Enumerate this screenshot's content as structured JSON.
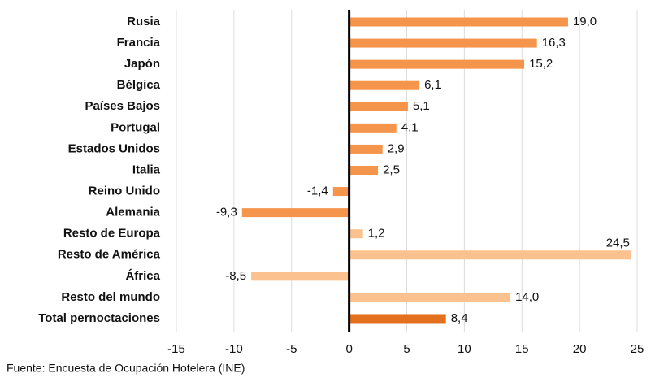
{
  "chart_data": {
    "type": "barh",
    "categories": [
      "Rusia",
      "Francia",
      "Japón",
      "Bélgica",
      "Países Bajos",
      "Portugal",
      "Estados Unidos",
      "Italia",
      "Reino Unido",
      "Alemania",
      "Resto de Europa",
      "Resto de América",
      "África",
      "Resto del mundo",
      "Total pernoctaciones"
    ],
    "values": [
      19.0,
      16.3,
      15.2,
      6.1,
      5.1,
      4.1,
      2.9,
      2.5,
      -1.4,
      -9.3,
      1.2,
      24.5,
      -8.5,
      14.0,
      8.4
    ],
    "value_labels": [
      "19,0",
      "16,3",
      "15,2",
      "6,1",
      "5,1",
      "4,1",
      "2,9",
      "2,5",
      "-1,4",
      "-9,3",
      "1,2",
      "24,5",
      "-8,5",
      "14,0",
      "8,4"
    ],
    "colors": [
      "#f5944b",
      "#f5944b",
      "#f5944b",
      "#f5944b",
      "#f5944b",
      "#f5944b",
      "#f5944b",
      "#f5944b",
      "#f5944b",
      "#f5944b",
      "#fbc28f",
      "#fbc28f",
      "#fbc28f",
      "#fbc28f",
      "#e2701c"
    ],
    "xlim": [
      -15,
      25
    ],
    "xticks": [
      -15,
      -10,
      -5,
      0,
      5,
      10,
      15,
      20,
      25
    ],
    "grid": true,
    "source": "Fuente: Encuesta de Ocupación Hotelera (INE)"
  }
}
